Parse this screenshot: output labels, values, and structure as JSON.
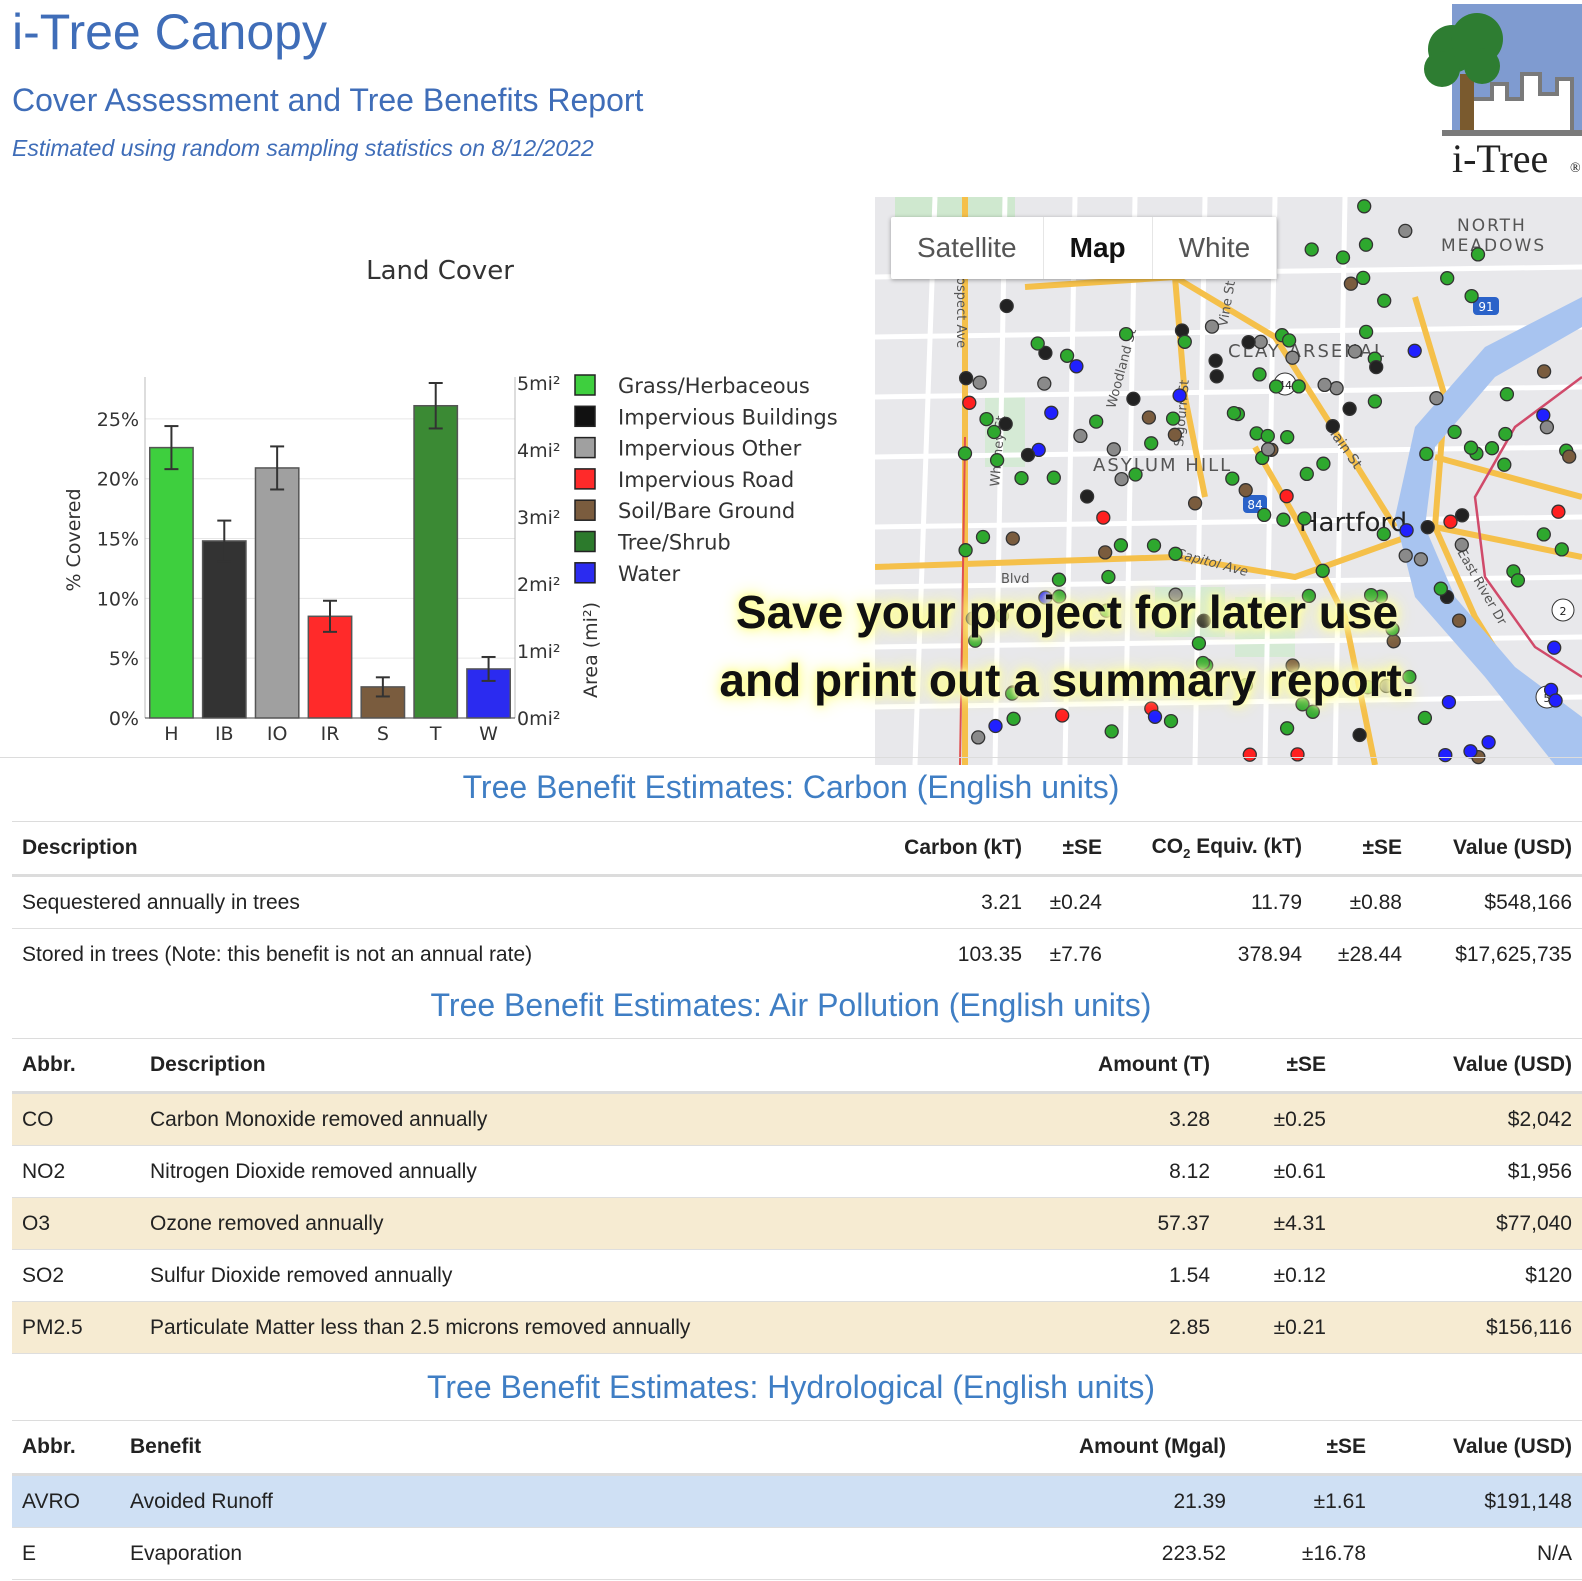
{
  "header": {
    "title": "i-Tree Canopy",
    "subtitle": "Cover Assessment and Tree Benefits Report",
    "date_line": "Estimated using random sampling statistics on 8/12/2022",
    "logo_text": "i-Tree",
    "logo_mark": "®"
  },
  "chart_data": {
    "type": "bar",
    "title": "Land Cover",
    "ylabel": "% Covered",
    "y2label": "Area (mi²)",
    "categories": [
      "H",
      "IB",
      "IO",
      "IR",
      "S",
      "T",
      "W"
    ],
    "values": [
      22.6,
      14.8,
      20.9,
      8.5,
      2.6,
      26.1,
      4.1
    ],
    "errors": [
      1.8,
      1.7,
      1.8,
      1.3,
      0.8,
      1.9,
      1.0
    ],
    "colors": [
      "#3ecf3e",
      "#333333",
      "#a0a0a0",
      "#ff2a2a",
      "#7a5c3e",
      "#3b8a34",
      "#2b2bf0"
    ],
    "ylim": [
      0,
      28
    ],
    "yticks": [
      "0%",
      "5%",
      "10%",
      "15%",
      "20%",
      "25%"
    ],
    "y2ticks": [
      "0mi²",
      "1mi²",
      "2mi²",
      "3mi²",
      "4mi²",
      "5mi²"
    ],
    "legend_placement": "right",
    "legend": [
      {
        "label": "Grass/Herbaceous",
        "color": "#3ecf3e"
      },
      {
        "label": "Impervious Buildings",
        "color": "#111111"
      },
      {
        "label": "Impervious Other",
        "color": "#a0a0a0"
      },
      {
        "label": "Impervious Road",
        "color": "#ff2a2a"
      },
      {
        "label": "Soil/Bare Ground",
        "color": "#7a5c3e"
      },
      {
        "label": "Tree/Shrub",
        "color": "#2c7a2c"
      },
      {
        "label": "Water",
        "color": "#2b2bf0"
      }
    ]
  },
  "map": {
    "tabs": [
      {
        "label": "Satellite",
        "active": false
      },
      {
        "label": "Map",
        "active": true
      },
      {
        "label": "White",
        "active": false
      }
    ],
    "labels": {
      "north_meadows_1": "NORTH",
      "north_meadows_2": "MEADOWS",
      "clay_arsenal": "CLAY ARSENAL",
      "asylum_hill": "ASYLUM HILL",
      "hartford": "Hartford",
      "main_st": "Main St",
      "capitol_ave": "Capitol Ave",
      "east_river_dr": "East River Dr",
      "woodland_st": "Woodland St",
      "whitney_st": "Whitney St",
      "prospect_ave": "ospect Ave",
      "vine_st": "Vine St",
      "sigourney_st": "Sigourn St",
      "farmington_blvd": "Blvd",
      "route_91": "91",
      "route_84": "84",
      "route_44": "44",
      "route_2": "2",
      "route_5": "5"
    }
  },
  "overlay": {
    "line1": "Save your project for later use",
    "line2": "and print out a summary report."
  },
  "carbon": {
    "title": "Tree Benefit Estimates: Carbon (English units)",
    "headers": {
      "description": "Description",
      "carbon": "Carbon (kT)",
      "se1": "±SE",
      "co2_main": "CO",
      "co2_sub": "2",
      "co2_rest": " Equiv. (kT)",
      "se2": "±SE",
      "value": "Value (USD)"
    },
    "rows": [
      {
        "description": "Sequestered annually in trees",
        "carbon": "3.21",
        "se1": "±0.24",
        "co2": "11.79",
        "se2": "±0.88",
        "value": "$548,166"
      },
      {
        "description": "Stored in trees (Note: this benefit is not an annual rate)",
        "carbon": "103.35",
        "se1": "±7.76",
        "co2": "378.94",
        "se2": "±28.44",
        "value": "$17,625,735"
      }
    ]
  },
  "air": {
    "title": "Tree Benefit Estimates: Air Pollution (English units)",
    "headers": {
      "abbr": "Abbr.",
      "description": "Description",
      "amount": "Amount (T)",
      "se": "±SE",
      "value": "Value (USD)"
    },
    "rows": [
      {
        "abbr": "CO",
        "description": "Carbon Monoxide removed annually",
        "amount": "3.28",
        "se": "±0.25",
        "value": "$2,042"
      },
      {
        "abbr": "NO2",
        "description": "Nitrogen Dioxide removed annually",
        "amount": "8.12",
        "se": "±0.61",
        "value": "$1,956"
      },
      {
        "abbr": "O3",
        "description": "Ozone removed annually",
        "amount": "57.37",
        "se": "±4.31",
        "value": "$77,040"
      },
      {
        "abbr": "SO2",
        "description": "Sulfur Dioxide removed annually",
        "amount": "1.54",
        "se": "±0.12",
        "value": "$120"
      },
      {
        "abbr": "PM2.5",
        "description": "Particulate Matter less than 2.5 microns removed annually",
        "amount": "2.85",
        "se": "±0.21",
        "value": "$156,116"
      }
    ]
  },
  "hydro": {
    "title": "Tree Benefit Estimates: Hydrological (English units)",
    "headers": {
      "abbr": "Abbr.",
      "benefit": "Benefit",
      "amount": "Amount (Mgal)",
      "se": "±SE",
      "value": "Value (USD)"
    },
    "rows": [
      {
        "abbr": "AVRO",
        "benefit": "Avoided Runoff",
        "amount": "21.39",
        "se": "±1.61",
        "value": "$191,148"
      },
      {
        "abbr": "E",
        "benefit": "Evaporation",
        "amount": "223.52",
        "se": "±16.78",
        "value": "N/A"
      }
    ]
  }
}
